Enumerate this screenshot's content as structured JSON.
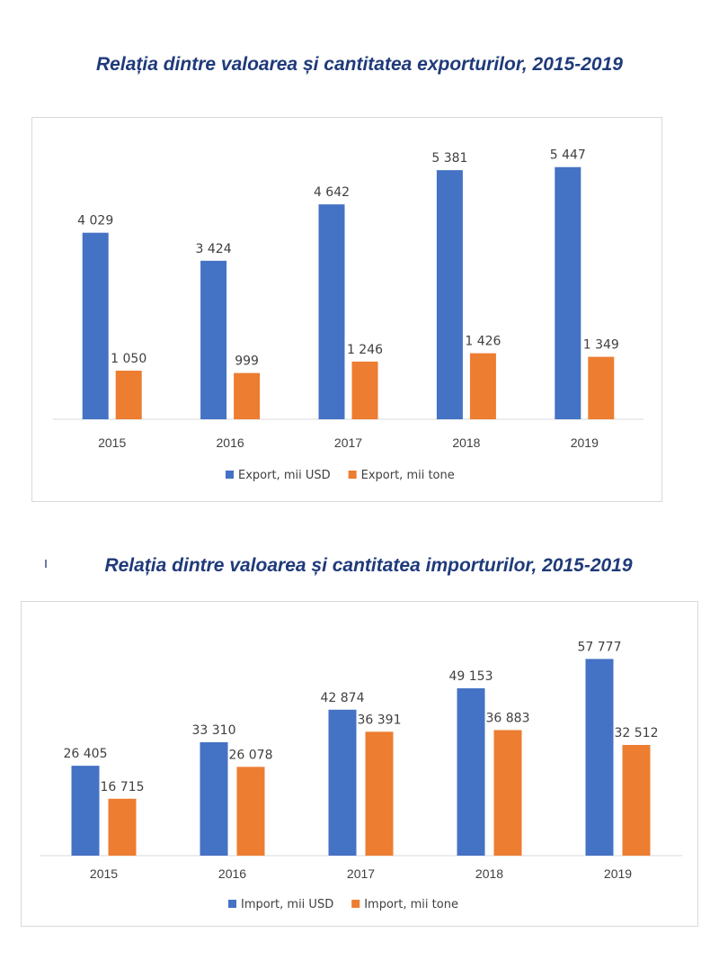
{
  "chart_data": [
    {
      "type": "bar",
      "title": "Relația dintre valoarea și cantitatea exporturilor, 2015-2019",
      "categories": [
        "2015",
        "2016",
        "2017",
        "2018",
        "2019"
      ],
      "series": [
        {
          "name": "Export, mii USD",
          "values": [
            4029,
            3424,
            4642,
            5381,
            5447
          ],
          "labels": [
            "4 029",
            "3 424",
            "4 642",
            "5 381",
            "5 447"
          ],
          "color": "#4472c4"
        },
        {
          "name": "Export, mii tone",
          "values": [
            1050,
            999,
            1246,
            1426,
            1349
          ],
          "labels": [
            "1 050",
            "999",
            "1 246",
            "1 426",
            "1 349"
          ],
          "color": "#ed7d31"
        }
      ],
      "xlabel": "",
      "ylabel": "",
      "ylim": [
        0,
        5500
      ],
      "grid": false,
      "legend": "bottom"
    },
    {
      "type": "bar",
      "title": "Relația dintre valoarea și cantitatea importurilor, 2015-2019",
      "categories": [
        "2015",
        "2016",
        "2017",
        "2018",
        "2019"
      ],
      "series": [
        {
          "name": "Import, mii USD",
          "values": [
            26405,
            33310,
            42874,
            49153,
            57777
          ],
          "labels": [
            "26 405",
            "33 310",
            "42 874",
            "49 153",
            "57 777"
          ],
          "color": "#4472c4"
        },
        {
          "name": "Import, mii tone",
          "values": [
            16715,
            26078,
            36391,
            36883,
            32512
          ],
          "labels": [
            "16 715",
            "26 078",
            "36 391",
            "36 883",
            "32 512"
          ],
          "color": "#ed7d31"
        }
      ],
      "xlabel": "",
      "ylabel": "",
      "ylim": [
        0,
        60000
      ],
      "grid": false,
      "legend": "bottom"
    }
  ]
}
